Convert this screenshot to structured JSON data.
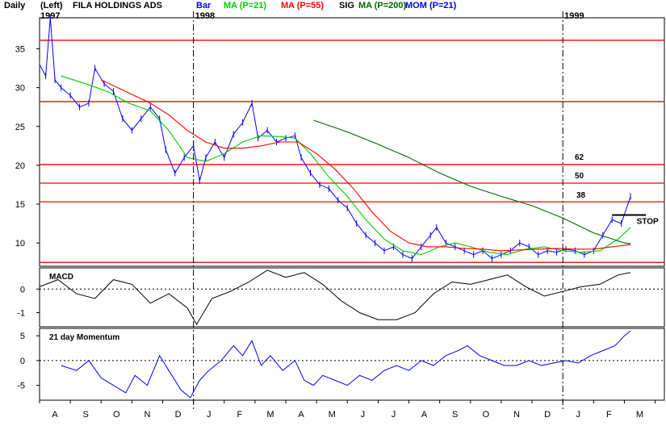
{
  "header": {
    "period": "Daily",
    "scale": "(Left)",
    "ticker": "FILA HOLDINGS ADS",
    "year_start": "1997",
    "legend": [
      {
        "label": "Bar",
        "color": "#0000ff"
      },
      {
        "label": "MA (P=21)",
        "color": "#00cc00"
      },
      {
        "label": "MA (P=55)",
        "color": "#ff0000"
      },
      {
        "label": "SIG",
        "color": "#000000"
      },
      {
        "label": "MA (P=200)",
        "color": "#006600"
      },
      {
        "label": "MOM (P=21)",
        "color": "#0000ff"
      }
    ]
  },
  "colors": {
    "price": "#0000ff",
    "ma21": "#00cc00",
    "ma55": "#ff0000",
    "ma200": "#006600",
    "fib": "#ff0000",
    "macd": "#000000",
    "mom": "#0000ff",
    "grid": "#000000"
  },
  "chart_data": [
    {
      "type": "line",
      "panel": "price",
      "x_unit": "month index (0 = Aug 1997 start)",
      "year_labels": [
        {
          "label": "1998",
          "x": 5.0
        },
        {
          "label": "1999",
          "x": 17.0
        }
      ],
      "month_labels": [
        "A",
        "S",
        "O",
        "N",
        "D",
        "J",
        "F",
        "M",
        "A",
        "M",
        "J",
        "J",
        "A",
        "S",
        "O",
        "N",
        "D",
        "J",
        "F",
        "M",
        "A",
        "M"
      ],
      "yticks": [
        10,
        15,
        20,
        25,
        30,
        35
      ],
      "ylim": [
        7,
        39
      ],
      "hlines": [
        {
          "y": 36.1,
          "label": ""
        },
        {
          "y": 28.2,
          "label": ""
        },
        {
          "y": 20.1,
          "label": "62"
        },
        {
          "y": 17.7,
          "label": "50"
        },
        {
          "y": 15.3,
          "label": ""
        },
        {
          "y": 7.5,
          "label": ""
        }
      ],
      "fib_label_38": "38",
      "stop_label": "STOP",
      "stop_level": 13.6,
      "series": [
        {
          "name": "Bar",
          "points": [
            [
              0,
              33
            ],
            [
              0.2,
              31.5
            ],
            [
              0.35,
              39
            ],
            [
              0.5,
              31
            ],
            [
              0.7,
              30
            ],
            [
              1.0,
              29
            ],
            [
              1.3,
              27.5
            ],
            [
              1.6,
              28
            ],
            [
              1.8,
              32.5
            ],
            [
              2.1,
              30.5
            ],
            [
              2.4,
              29.5
            ],
            [
              2.7,
              26
            ],
            [
              3.0,
              24.5
            ],
            [
              3.3,
              26
            ],
            [
              3.6,
              27.5
            ],
            [
              3.9,
              26
            ],
            [
              4.1,
              22
            ],
            [
              4.4,
              19
            ],
            [
              4.7,
              21
            ],
            [
              5.0,
              22.5
            ],
            [
              5.2,
              18
            ],
            [
              5.4,
              21
            ],
            [
              5.7,
              23
            ],
            [
              6.0,
              21
            ],
            [
              6.3,
              24
            ],
            [
              6.6,
              25.5
            ],
            [
              6.9,
              28
            ],
            [
              7.1,
              23.5
            ],
            [
              7.4,
              24.5
            ],
            [
              7.7,
              23
            ],
            [
              8.0,
              23.5
            ],
            [
              8.3,
              23.8
            ],
            [
              8.5,
              21
            ],
            [
              8.8,
              19
            ],
            [
              9.1,
              17.5
            ],
            [
              9.4,
              17
            ],
            [
              9.7,
              15.5
            ],
            [
              10.0,
              14.5
            ],
            [
              10.3,
              12.5
            ],
            [
              10.6,
              11
            ],
            [
              10.9,
              10
            ],
            [
              11.2,
              9
            ],
            [
              11.5,
              9.5
            ],
            [
              11.8,
              8.5
            ],
            [
              12.1,
              8
            ],
            [
              12.4,
              9.5
            ],
            [
              12.7,
              11
            ],
            [
              12.9,
              12
            ],
            [
              13.2,
              10
            ],
            [
              13.5,
              9.5
            ],
            [
              13.8,
              9
            ],
            [
              14.1,
              8.5
            ],
            [
              14.4,
              9
            ],
            [
              14.7,
              8
            ],
            [
              15.0,
              8.5
            ],
            [
              15.3,
              9
            ],
            [
              15.6,
              10
            ],
            [
              15.9,
              9.5
            ],
            [
              16.2,
              8.5
            ],
            [
              16.5,
              9
            ],
            [
              16.8,
              8.8
            ],
            [
              17.1,
              9.2
            ],
            [
              17.4,
              9
            ],
            [
              17.7,
              8.5
            ],
            [
              18.0,
              9
            ],
            [
              18.3,
              11
            ],
            [
              18.6,
              13
            ],
            [
              18.9,
              12.5
            ],
            [
              19.2,
              16
            ]
          ]
        },
        {
          "name": "MA (P=21)",
          "points": [
            [
              0.7,
              31.5
            ],
            [
              1.5,
              30.5
            ],
            [
              2.2,
              29.5
            ],
            [
              2.9,
              28
            ],
            [
              3.6,
              27
            ],
            [
              4.2,
              24.5
            ],
            [
              4.8,
              21
            ],
            [
              5.4,
              20.5
            ],
            [
              6.0,
              21.5
            ],
            [
              6.6,
              23
            ],
            [
              7.2,
              23.8
            ],
            [
              7.8,
              23.7
            ],
            [
              8.3,
              23.5
            ],
            [
              8.8,
              21.5
            ],
            [
              9.4,
              18.5
            ],
            [
              10.0,
              16
            ],
            [
              10.6,
              13
            ],
            [
              11.2,
              10.5
            ],
            [
              11.8,
              9
            ],
            [
              12.4,
              8.5
            ],
            [
              13.0,
              9.5
            ],
            [
              13.5,
              10
            ],
            [
              14.0,
              9.5
            ],
            [
              14.6,
              8.8
            ],
            [
              15.2,
              8.5
            ],
            [
              15.8,
              9.2
            ],
            [
              16.4,
              9.5
            ],
            [
              17.0,
              9
            ],
            [
              17.6,
              8.8
            ],
            [
              18.2,
              9
            ],
            [
              18.8,
              10.5
            ],
            [
              19.2,
              12
            ]
          ]
        },
        {
          "name": "MA (P=55)",
          "points": [
            [
              2.0,
              31
            ],
            [
              2.8,
              29.5
            ],
            [
              3.6,
              28
            ],
            [
              4.2,
              26.5
            ],
            [
              4.8,
              24.5
            ],
            [
              5.4,
              23
            ],
            [
              6.0,
              22.2
            ],
            [
              6.6,
              22.2
            ],
            [
              7.2,
              22.5
            ],
            [
              7.8,
              23
            ],
            [
              8.4,
              23
            ],
            [
              9.0,
              21.5
            ],
            [
              9.6,
              19.5
            ],
            [
              10.2,
              17
            ],
            [
              10.8,
              14
            ],
            [
              11.4,
              11.5
            ],
            [
              12.0,
              10
            ],
            [
              12.6,
              9.5
            ],
            [
              13.2,
              9.5
            ],
            [
              13.8,
              9.3
            ],
            [
              14.4,
              9.2
            ],
            [
              15.0,
              9
            ],
            [
              15.6,
              9.1
            ],
            [
              16.2,
              9.2
            ],
            [
              16.8,
              9.3
            ],
            [
              17.4,
              9.2
            ],
            [
              18.0,
              9.2
            ],
            [
              18.6,
              9.5
            ],
            [
              19.2,
              9.8
            ]
          ]
        },
        {
          "name": "MA (P=200)",
          "points": [
            [
              8.9,
              25.8
            ],
            [
              10.0,
              24.3
            ],
            [
              11.0,
              22.7
            ],
            [
              12.0,
              21.0
            ],
            [
              13.0,
              19.0
            ],
            [
              14.0,
              17.3
            ],
            [
              15.0,
              16.0
            ],
            [
              16.0,
              14.8
            ],
            [
              17.0,
              13.2
            ],
            [
              18.0,
              11.3
            ],
            [
              19.0,
              10.0
            ],
            [
              19.2,
              9.9
            ]
          ]
        }
      ]
    },
    {
      "type": "line",
      "panel": "macd",
      "title": "MACD",
      "yticks": [
        0,
        -1
      ],
      "ylim": [
        -1.6,
        0.9
      ],
      "series": [
        {
          "name": "MACD",
          "points": [
            [
              0,
              0.1
            ],
            [
              0.6,
              0.4
            ],
            [
              1.2,
              -0.2
            ],
            [
              1.8,
              -0.4
            ],
            [
              2.4,
              0.4
            ],
            [
              3.0,
              0.2
            ],
            [
              3.6,
              -0.6
            ],
            [
              4.2,
              -0.2
            ],
            [
              4.8,
              -0.8
            ],
            [
              5.1,
              -1.5
            ],
            [
              5.6,
              -0.4
            ],
            [
              6.2,
              -0.1
            ],
            [
              6.8,
              0.3
            ],
            [
              7.4,
              0.8
            ],
            [
              8.0,
              0.5
            ],
            [
              8.6,
              0.7
            ],
            [
              9.2,
              0.2
            ],
            [
              9.8,
              -0.5
            ],
            [
              10.4,
              -1.0
            ],
            [
              11.0,
              -1.3
            ],
            [
              11.6,
              -1.3
            ],
            [
              12.2,
              -1.0
            ],
            [
              12.8,
              -0.2
            ],
            [
              13.4,
              0.3
            ],
            [
              14.0,
              0.2
            ],
            [
              14.6,
              0.4
            ],
            [
              15.2,
              0.6
            ],
            [
              15.8,
              0.1
            ],
            [
              16.4,
              -0.3
            ],
            [
              17.0,
              -0.1
            ],
            [
              17.6,
              0.1
            ],
            [
              18.2,
              0.2
            ],
            [
              18.8,
              0.6
            ],
            [
              19.2,
              0.7
            ]
          ]
        }
      ]
    },
    {
      "type": "line",
      "panel": "momentum",
      "title": "21 day Momentum",
      "yticks": [
        5,
        0,
        -5
      ],
      "ylim": [
        -8,
        6.5
      ],
      "series": [
        {
          "name": "21 day Momentum",
          "points": [
            [
              0.7,
              -1
            ],
            [
              1.2,
              -2
            ],
            [
              1.6,
              0
            ],
            [
              2.0,
              -3.5
            ],
            [
              2.4,
              -5
            ],
            [
              2.8,
              -6.5
            ],
            [
              3.1,
              -3
            ],
            [
              3.5,
              -5
            ],
            [
              3.9,
              1
            ],
            [
              4.2,
              -2
            ],
            [
              4.6,
              -6
            ],
            [
              4.9,
              -7.5
            ],
            [
              5.2,
              -4
            ],
            [
              5.5,
              -2
            ],
            [
              5.9,
              0
            ],
            [
              6.3,
              3
            ],
            [
              6.6,
              1
            ],
            [
              6.9,
              4
            ],
            [
              7.2,
              -1
            ],
            [
              7.5,
              1
            ],
            [
              7.9,
              -2
            ],
            [
              8.3,
              0
            ],
            [
              8.6,
              -4
            ],
            [
              8.9,
              -5
            ],
            [
              9.2,
              -3
            ],
            [
              9.6,
              -4
            ],
            [
              10.0,
              -5
            ],
            [
              10.4,
              -3
            ],
            [
              10.8,
              -4
            ],
            [
              11.2,
              -2
            ],
            [
              11.6,
              -1
            ],
            [
              12.0,
              -2
            ],
            [
              12.4,
              0
            ],
            [
              12.8,
              -1
            ],
            [
              13.2,
              1
            ],
            [
              13.6,
              2
            ],
            [
              13.9,
              3
            ],
            [
              14.3,
              1
            ],
            [
              14.7,
              0
            ],
            [
              15.1,
              -1
            ],
            [
              15.5,
              -1
            ],
            [
              15.9,
              0
            ],
            [
              16.3,
              -1
            ],
            [
              16.7,
              -0.5
            ],
            [
              17.1,
              0
            ],
            [
              17.5,
              -0.5
            ],
            [
              17.9,
              1
            ],
            [
              18.3,
              2
            ],
            [
              18.7,
              3
            ],
            [
              19.0,
              5
            ],
            [
              19.2,
              6
            ]
          ]
        }
      ]
    }
  ]
}
